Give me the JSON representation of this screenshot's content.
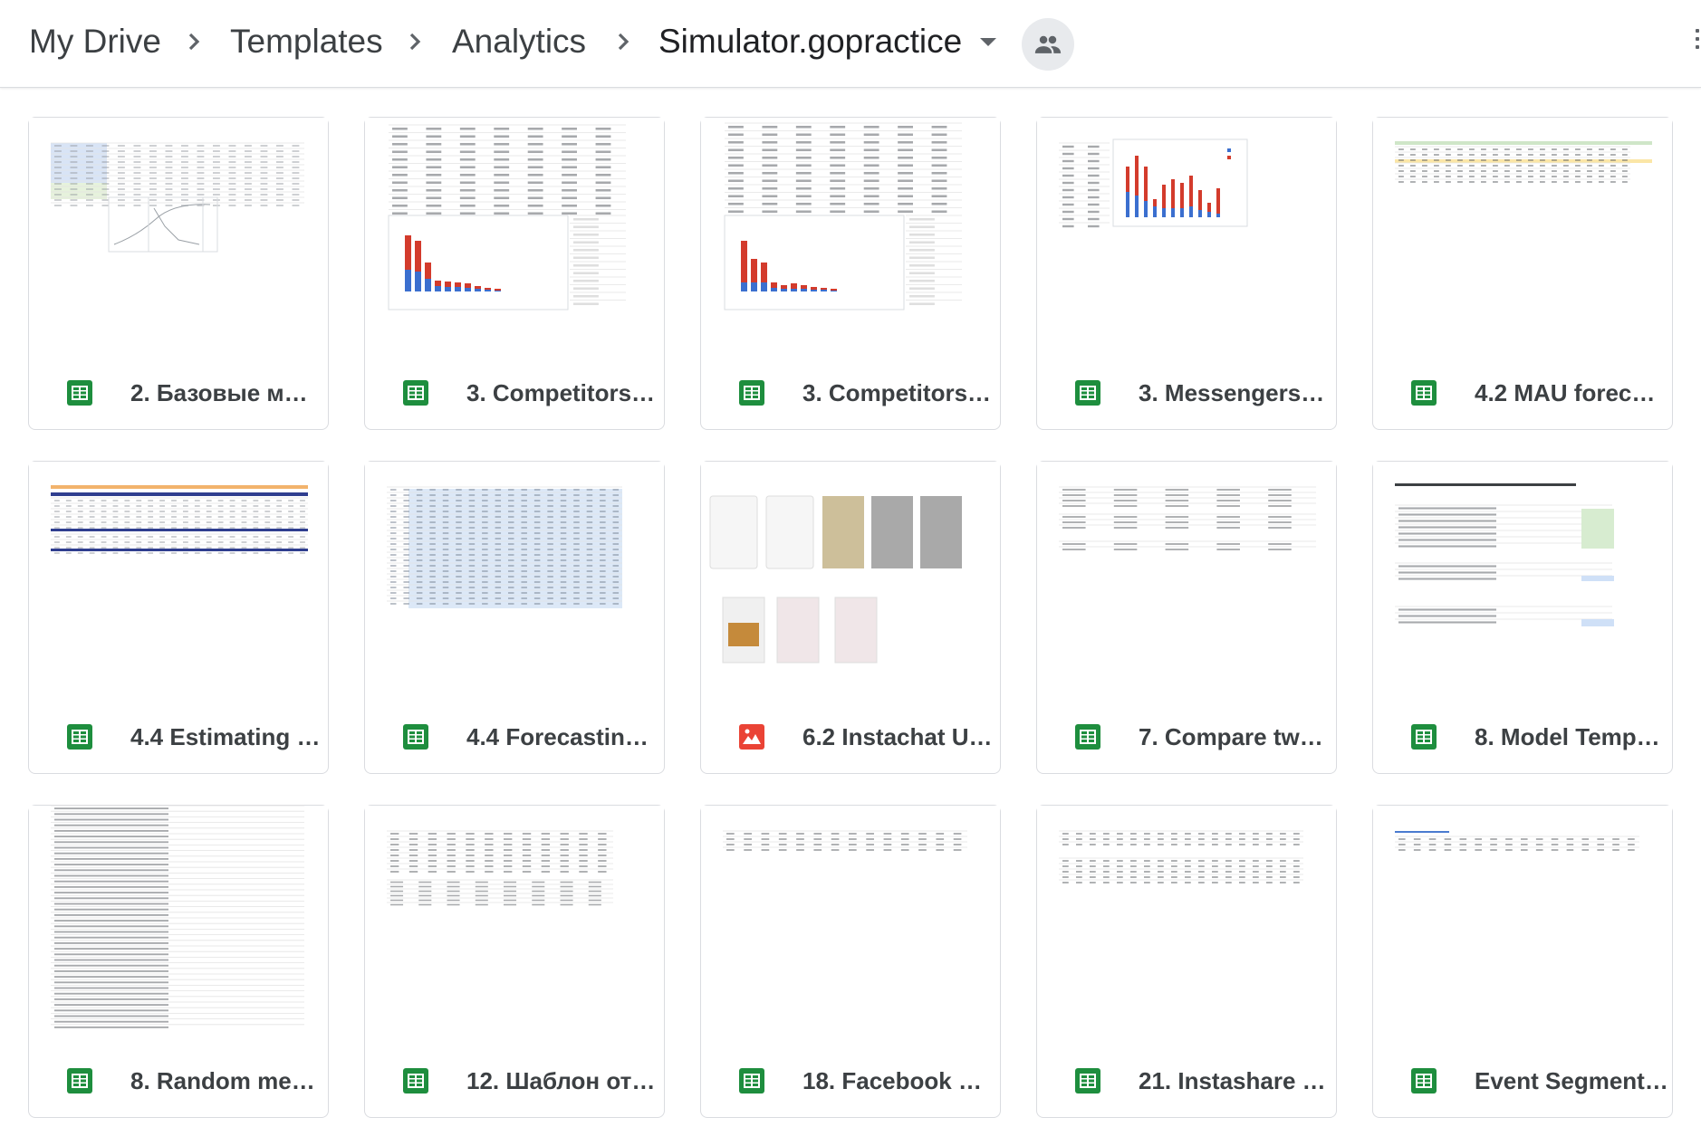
{
  "breadcrumb": {
    "items": [
      "My Drive",
      "Templates",
      "Analytics"
    ],
    "current": "Simulator.gopractice"
  },
  "files": [
    {
      "name": "2. Базовые м…",
      "type": "sheets"
    },
    {
      "name": "3. Competitors…",
      "type": "sheets"
    },
    {
      "name": "3. Competitors…",
      "type": "sheets"
    },
    {
      "name": "3. Messengers…",
      "type": "sheets"
    },
    {
      "name": "4.2 MAU forec…",
      "type": "sheets"
    },
    {
      "name": "4.4 Estimating …",
      "type": "sheets"
    },
    {
      "name": "4.4 Forecastin…",
      "type": "sheets"
    },
    {
      "name": "6.2 Instachat U…",
      "type": "slides"
    },
    {
      "name": "7. Compare tw…",
      "type": "sheets"
    },
    {
      "name": "8. Model Temp…",
      "type": "sheets"
    },
    {
      "name": "8. Random me…",
      "type": "sheets"
    },
    {
      "name": "12. Шаблон от…",
      "type": "sheets"
    },
    {
      "name": "18. Facebook …",
      "type": "sheets"
    },
    {
      "name": "21. Instashare …",
      "type": "sheets"
    },
    {
      "name": "Event Segment…",
      "type": "sheets"
    }
  ],
  "icons": {
    "sheets": "sheets-file-icon",
    "slides": "slides-image-file-icon",
    "share": "shared-people-icon"
  },
  "colors": {
    "sheets": "#1e8e3e",
    "slides": "#ea4335"
  }
}
